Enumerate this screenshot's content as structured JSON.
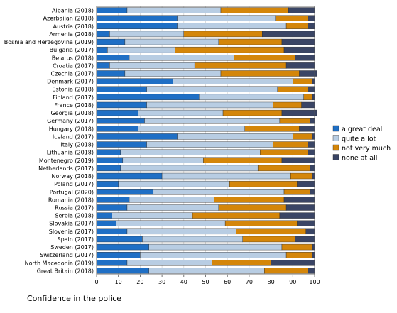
{
  "chart_data": {
    "type": "bar",
    "orientation": "horizontal",
    "stacked": true,
    "caption": "Confidence in the police",
    "xlim": [
      0,
      100
    ],
    "x_ticks": [
      "0",
      "10",
      "20",
      "30",
      "40",
      "50",
      "60",
      "70",
      "80",
      "90",
      "100"
    ],
    "grid": true,
    "legend_position": "right",
    "categories": [
      "Albania (2018)",
      "Azerbaijan (2018)",
      "Austria (2018)",
      "Armenia (2018)",
      "Bosnia and Herzegovina (2019)",
      "Bulgaria (2017)",
      "Belarus (2018)",
      "Croatia (2017)",
      "Czechia (2017)",
      "Denmark (2017)",
      "Estonia (2018)",
      "Finland (2017)",
      "France (2018)",
      "Georgia (2018)",
      "Germany (2017)",
      "Hungary (2018)",
      "Iceland (2017)",
      "Italy (2018)",
      "Lithuania (2018)",
      "Montenegro (2019)",
      "Netherlands (2017)",
      "Norway (2018)",
      "Poland (2017)",
      "Portugal (2020)",
      "Romania (2018)",
      "Russia (2017)",
      "Serbia (2018)",
      "Slovakia (2017)",
      "Slovenia (2017)",
      "Spain (2017)",
      "Sweden (2017)",
      "Switzerland (2017)",
      "North Macedonia (2019)",
      "Great Britain (2018)"
    ],
    "series": [
      {
        "name": "a great deal",
        "color": "#1f6fc5",
        "values": [
          14,
          37,
          37,
          6,
          13,
          5,
          15,
          6,
          13,
          35,
          23,
          47,
          23,
          19,
          22,
          19,
          37,
          23,
          11,
          12,
          11,
          30,
          10,
          26,
          15,
          14,
          7,
          9,
          14,
          21,
          24,
          20,
          14,
          24
        ]
      },
      {
        "name": "quite a lot",
        "color": "#b8cde3",
        "values": [
          43,
          45,
          50,
          34,
          43,
          31,
          48,
          39,
          44,
          55,
          60,
          48,
          58,
          39,
          62,
          49,
          53,
          58,
          64,
          37,
          63,
          59,
          51,
          60,
          39,
          42,
          37,
          50,
          50,
          46,
          61,
          67,
          39,
          53
        ]
      },
      {
        "name": "not very much",
        "color": "#d4860a",
        "values": [
          31,
          15,
          10,
          36,
          29,
          50,
          28,
          42,
          36,
          9,
          14,
          4,
          13,
          27,
          14,
          25,
          9,
          16,
          22,
          36,
          24,
          10,
          31,
          12,
          32,
          31,
          40,
          33,
          32,
          24,
          14,
          12,
          27,
          20
        ]
      },
      {
        "name": "none at all",
        "color": "#3a4565",
        "values": [
          12,
          3,
          3,
          24,
          15,
          14,
          9,
          13,
          8,
          1,
          3,
          1,
          6,
          16,
          2,
          7,
          1,
          3,
          3,
          15,
          2,
          1,
          8,
          2,
          14,
          13,
          16,
          8,
          4,
          9,
          1,
          1,
          20,
          3
        ]
      }
    ]
  }
}
